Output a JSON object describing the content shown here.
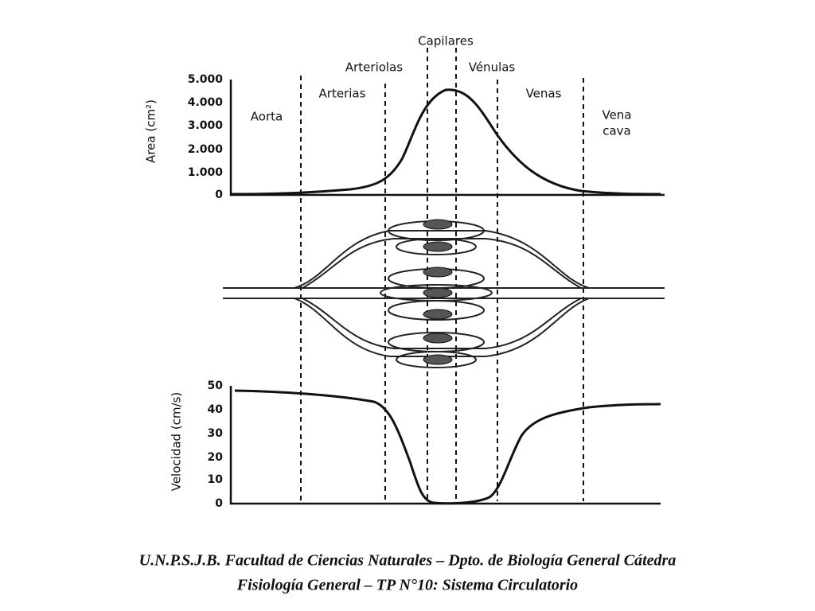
{
  "labels": {
    "capilares": "Capilares",
    "arteriolas": "Arteriolas",
    "venulas": "Vénulas",
    "arterias": "Arterias",
    "venas": "Venas",
    "aorta": "Aorta",
    "vena": "Vena",
    "cava": "cava"
  },
  "area_chart": {
    "ylabel": "Area (cm²)",
    "yticks": [
      "5.000",
      "4.000",
      "3.000",
      "2.000",
      "1.000",
      "0"
    ]
  },
  "velocity_chart": {
    "ylabel": "Velocidad (cm/s)",
    "yticks": [
      "50",
      "40",
      "30",
      "20",
      "10",
      "0"
    ]
  },
  "footer": {
    "line1": "U.N.P.S.J.B. Facultad de Ciencias Naturales – Dpto. de Biología General Cátedra",
    "line2": "Fisiología General – TP N°10: Sistema Circulatorio"
  }
}
